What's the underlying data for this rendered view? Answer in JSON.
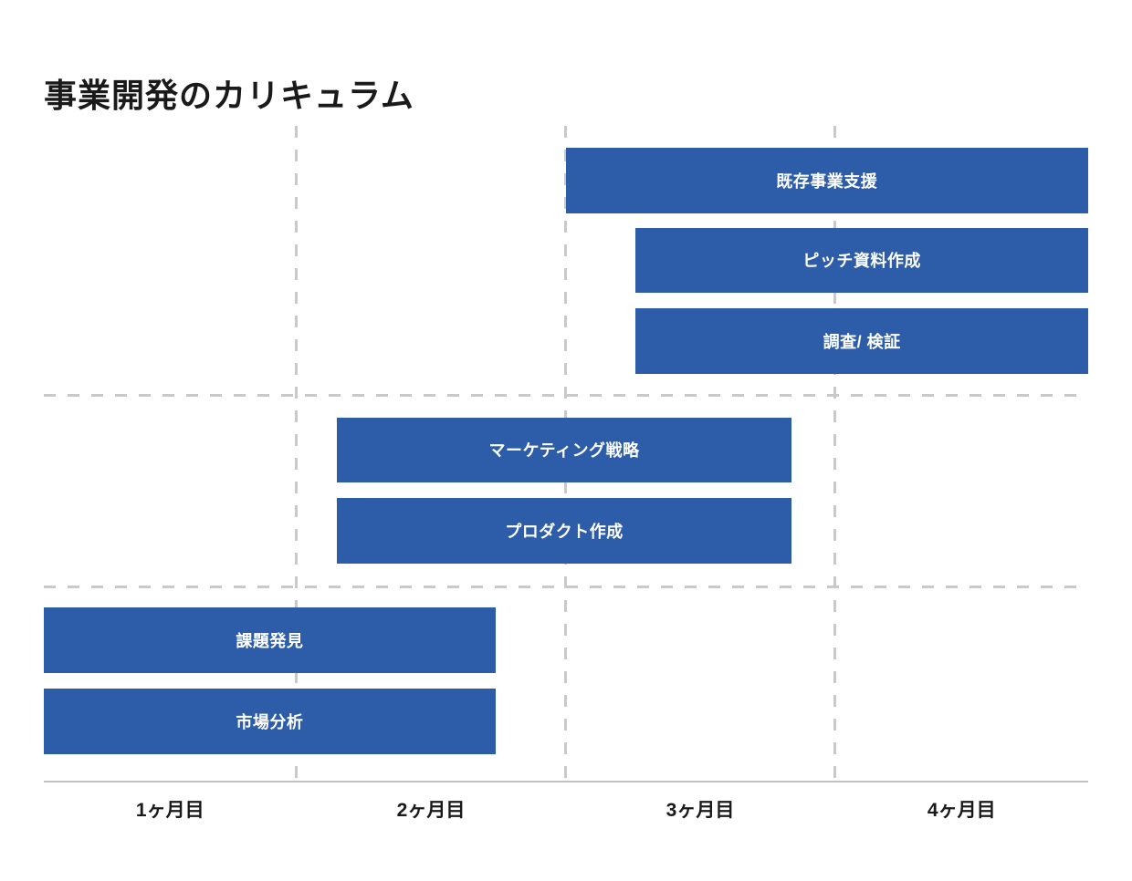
{
  "title": "事業開発のカリキュラム",
  "colors": {
    "bar": "#2d5da8",
    "bar_text": "#ffffff",
    "grid": "#c9c9c9",
    "axis": "#c2c2c2",
    "text": "#1a1a1a",
    "background": "#ffffff"
  },
  "chart_data": {
    "type": "bar",
    "subtype": "gantt",
    "title": "事業開発のカリキュラム",
    "xlabel": "",
    "ylabel": "",
    "x_axis": {
      "unit": "month",
      "range": [
        0,
        4
      ],
      "tick_labels": [
        "1ヶ月目",
        "2ヶ月目",
        "3ヶ月目",
        "4ヶ月目"
      ],
      "gridlines_at_month_boundaries": [
        1,
        2,
        3
      ],
      "gridline_style": "dashed",
      "baseline": "solid"
    },
    "row_group_separators_after_rows": [
      2,
      4
    ],
    "tasks": [
      {
        "row": 0,
        "label": "既存事業支援",
        "start": 2.0,
        "end": 4.0
      },
      {
        "row": 1,
        "label": "ピッチ資料作成",
        "start": 2.26,
        "end": 4.0
      },
      {
        "row": 2,
        "label": "調査/ 検証",
        "start": 2.26,
        "end": 4.0
      },
      {
        "row": 3,
        "label": "マーケティング戦略",
        "start": 1.15,
        "end": 2.84
      },
      {
        "row": 4,
        "label": "プロダクト作成",
        "start": 1.15,
        "end": 2.84
      },
      {
        "row": 5,
        "label": "課題発見",
        "start": 0.0,
        "end": 1.74
      },
      {
        "row": 6,
        "label": "市場分析",
        "start": 0.0,
        "end": 1.74
      }
    ]
  }
}
